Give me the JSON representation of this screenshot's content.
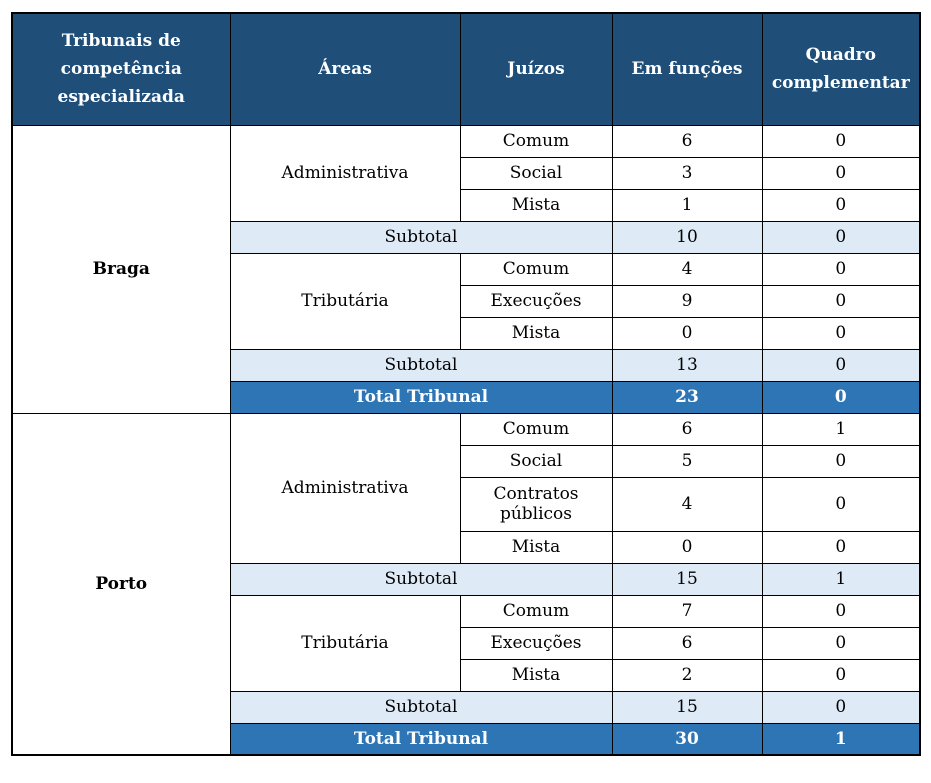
{
  "colors": {
    "header_bg": "#1F4E79",
    "header_text": "#FFFFFF",
    "subtotal_bg": "#DEEBF7",
    "total_bg": "#2E75B6",
    "total_text": "#FFFFFF",
    "body_text": "#000000",
    "border": "#000000",
    "page_bg": "#FFFFFF"
  },
  "table": {
    "columns": [
      "Tribunais de competência especializada",
      "Áreas",
      "Juízos",
      "Em funções",
      "Quadro complementar"
    ],
    "subtotal_label": "Subtotal",
    "total_label": "Total Tribunal",
    "tribunals": [
      {
        "name": "Braga",
        "areas": [
          {
            "name": "Administrativa",
            "rows": [
              {
                "juizo": "Comum",
                "em_funcoes": "6",
                "quadro_complementar": "0"
              },
              {
                "juizo": "Social",
                "em_funcoes": "3",
                "quadro_complementar": "0"
              },
              {
                "juizo": "Mista",
                "em_funcoes": "1",
                "quadro_complementar": "0"
              }
            ],
            "subtotal": {
              "em_funcoes": "10",
              "quadro_complementar": "0"
            }
          },
          {
            "name": "Tributária",
            "rows": [
              {
                "juizo": "Comum",
                "em_funcoes": "4",
                "quadro_complementar": "0"
              },
              {
                "juizo": "Execuções",
                "em_funcoes": "9",
                "quadro_complementar": "0"
              },
              {
                "juizo": "Mista",
                "em_funcoes": "0",
                "quadro_complementar": "0"
              }
            ],
            "subtotal": {
              "em_funcoes": "13",
              "quadro_complementar": "0"
            }
          }
        ],
        "total": {
          "em_funcoes": "23",
          "quadro_complementar": "0"
        }
      },
      {
        "name": "Porto",
        "areas": [
          {
            "name": "Administrativa",
            "rows": [
              {
                "juizo": "Comum",
                "em_funcoes": "6",
                "quadro_complementar": "1"
              },
              {
                "juizo": "Social",
                "em_funcoes": "5",
                "quadro_complementar": "0"
              },
              {
                "juizo": "Contratos públicos",
                "em_funcoes": "4",
                "quadro_complementar": "0"
              },
              {
                "juizo": "Mista",
                "em_funcoes": "0",
                "quadro_complementar": "0"
              }
            ],
            "subtotal": {
              "em_funcoes": "15",
              "quadro_complementar": "1"
            }
          },
          {
            "name": "Tributária",
            "rows": [
              {
                "juizo": "Comum",
                "em_funcoes": "7",
                "quadro_complementar": "0"
              },
              {
                "juizo": "Execuções",
                "em_funcoes": "6",
                "quadro_complementar": "0"
              },
              {
                "juizo": "Mista",
                "em_funcoes": "2",
                "quadro_complementar": "0"
              }
            ],
            "subtotal": {
              "em_funcoes": "15",
              "quadro_complementar": "0"
            }
          }
        ],
        "total": {
          "em_funcoes": "30",
          "quadro_complementar": "1"
        }
      }
    ]
  }
}
